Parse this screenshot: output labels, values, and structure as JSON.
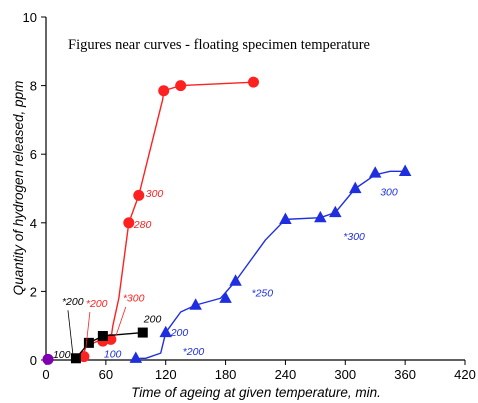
{
  "chart_data": {
    "type": "line",
    "title": "",
    "xlabel": "Time of ageing at given temperature, min.",
    "ylabel": "Quantity of hydrogen released, ppm",
    "xlim": [
      0,
      420
    ],
    "ylim": [
      0,
      10
    ],
    "xticks": [
      0,
      60,
      120,
      180,
      240,
      300,
      360,
      420
    ],
    "yticks": [
      0,
      2,
      4,
      6,
      8,
      10
    ],
    "grid": false,
    "legend": "none",
    "note": "Figures near curves - floating specimen temperature",
    "series": [
      {
        "color": "#ff2020",
        "marker": "circle",
        "x": [
          36,
          38,
          40,
          52,
          57,
          65,
          67,
          73,
          83,
          93,
          117,
          118,
          135,
          208
        ],
        "y": [
          0,
          0.2,
          0.4,
          0.55,
          0.55,
          0.6,
          1.0,
          1.8,
          4.0,
          4.8,
          7.6,
          7.85,
          8.0,
          8.1
        ],
        "marker_x": [
          38,
          57,
          65,
          83,
          93,
          118,
          135,
          208
        ],
        "marker_y": [
          0.1,
          0.55,
          0.6,
          4.0,
          4.8,
          7.85,
          8.0,
          8.1
        ]
      },
      {
        "color": "#1f2fe0",
        "marker": "triangle",
        "x": [
          90,
          95,
          100,
          115,
          120,
          135,
          150,
          175,
          190,
          220,
          240,
          275,
          290,
          310,
          330,
          345,
          360,
          363
        ],
        "y": [
          0,
          0.05,
          0.05,
          0.2,
          0.8,
          1.4,
          1.6,
          1.8,
          2.3,
          3.5,
          4.1,
          4.15,
          4.3,
          5.0,
          5.4,
          5.5,
          5.5,
          5.5
        ],
        "marker_x": [
          90,
          120,
          150,
          180,
          190,
          240,
          275,
          290,
          310,
          330,
          360
        ],
        "marker_y": [
          0.05,
          0.8,
          1.6,
          1.8,
          2.3,
          4.1,
          4.15,
          4.3,
          5.0,
          5.45,
          5.5
        ]
      },
      {
        "color": "#000000",
        "marker": "square",
        "x": [
          30,
          43,
          57,
          97
        ],
        "y": [
          0.05,
          0.5,
          0.7,
          0.8
        ],
        "marker_x": [
          30,
          43,
          57,
          97
        ],
        "marker_y": [
          0.05,
          0.5,
          0.7,
          0.8
        ]
      },
      {
        "color": "#8000b0",
        "marker": "circle",
        "x": [
          2
        ],
        "y": [
          0.02
        ],
        "marker_x": [
          2
        ],
        "marker_y": [
          0.02
        ]
      }
    ],
    "annotations": [
      {
        "text": "*200",
        "x": 16,
        "y": 1.6,
        "color": "#000000"
      },
      {
        "text": "*200",
        "x": 40,
        "y": 1.55,
        "color": "#ff2020"
      },
      {
        "text": "*300",
        "x": 77,
        "y": 1.7,
        "color": "#ff2020"
      },
      {
        "text": "100",
        "x": 7,
        "y": 0.06,
        "color": "#000000"
      },
      {
        "text": "200",
        "x": 98,
        "y": 1.1,
        "color": "#000000"
      },
      {
        "text": "280",
        "x": 88,
        "y": 3.85,
        "color": "#ff2020"
      },
      {
        "text": "300",
        "x": 100,
        "y": 4.75,
        "color": "#ff2020"
      },
      {
        "text": "100",
        "x": 58,
        "y": 0.08,
        "color": "#1f2fe0"
      },
      {
        "text": "*200",
        "x": 137,
        "y": 0.15,
        "color": "#1f2fe0"
      },
      {
        "text": "200",
        "x": 125,
        "y": 0.7,
        "color": "#1f2fe0"
      },
      {
        "text": "*250",
        "x": 206,
        "y": 1.85,
        "color": "#1f2fe0"
      },
      {
        "text": "*300",
        "x": 298,
        "y": 3.5,
        "color": "#1f2fe0"
      },
      {
        "text": "300",
        "x": 335,
        "y": 4.8,
        "color": "#1f2fe0"
      }
    ]
  }
}
